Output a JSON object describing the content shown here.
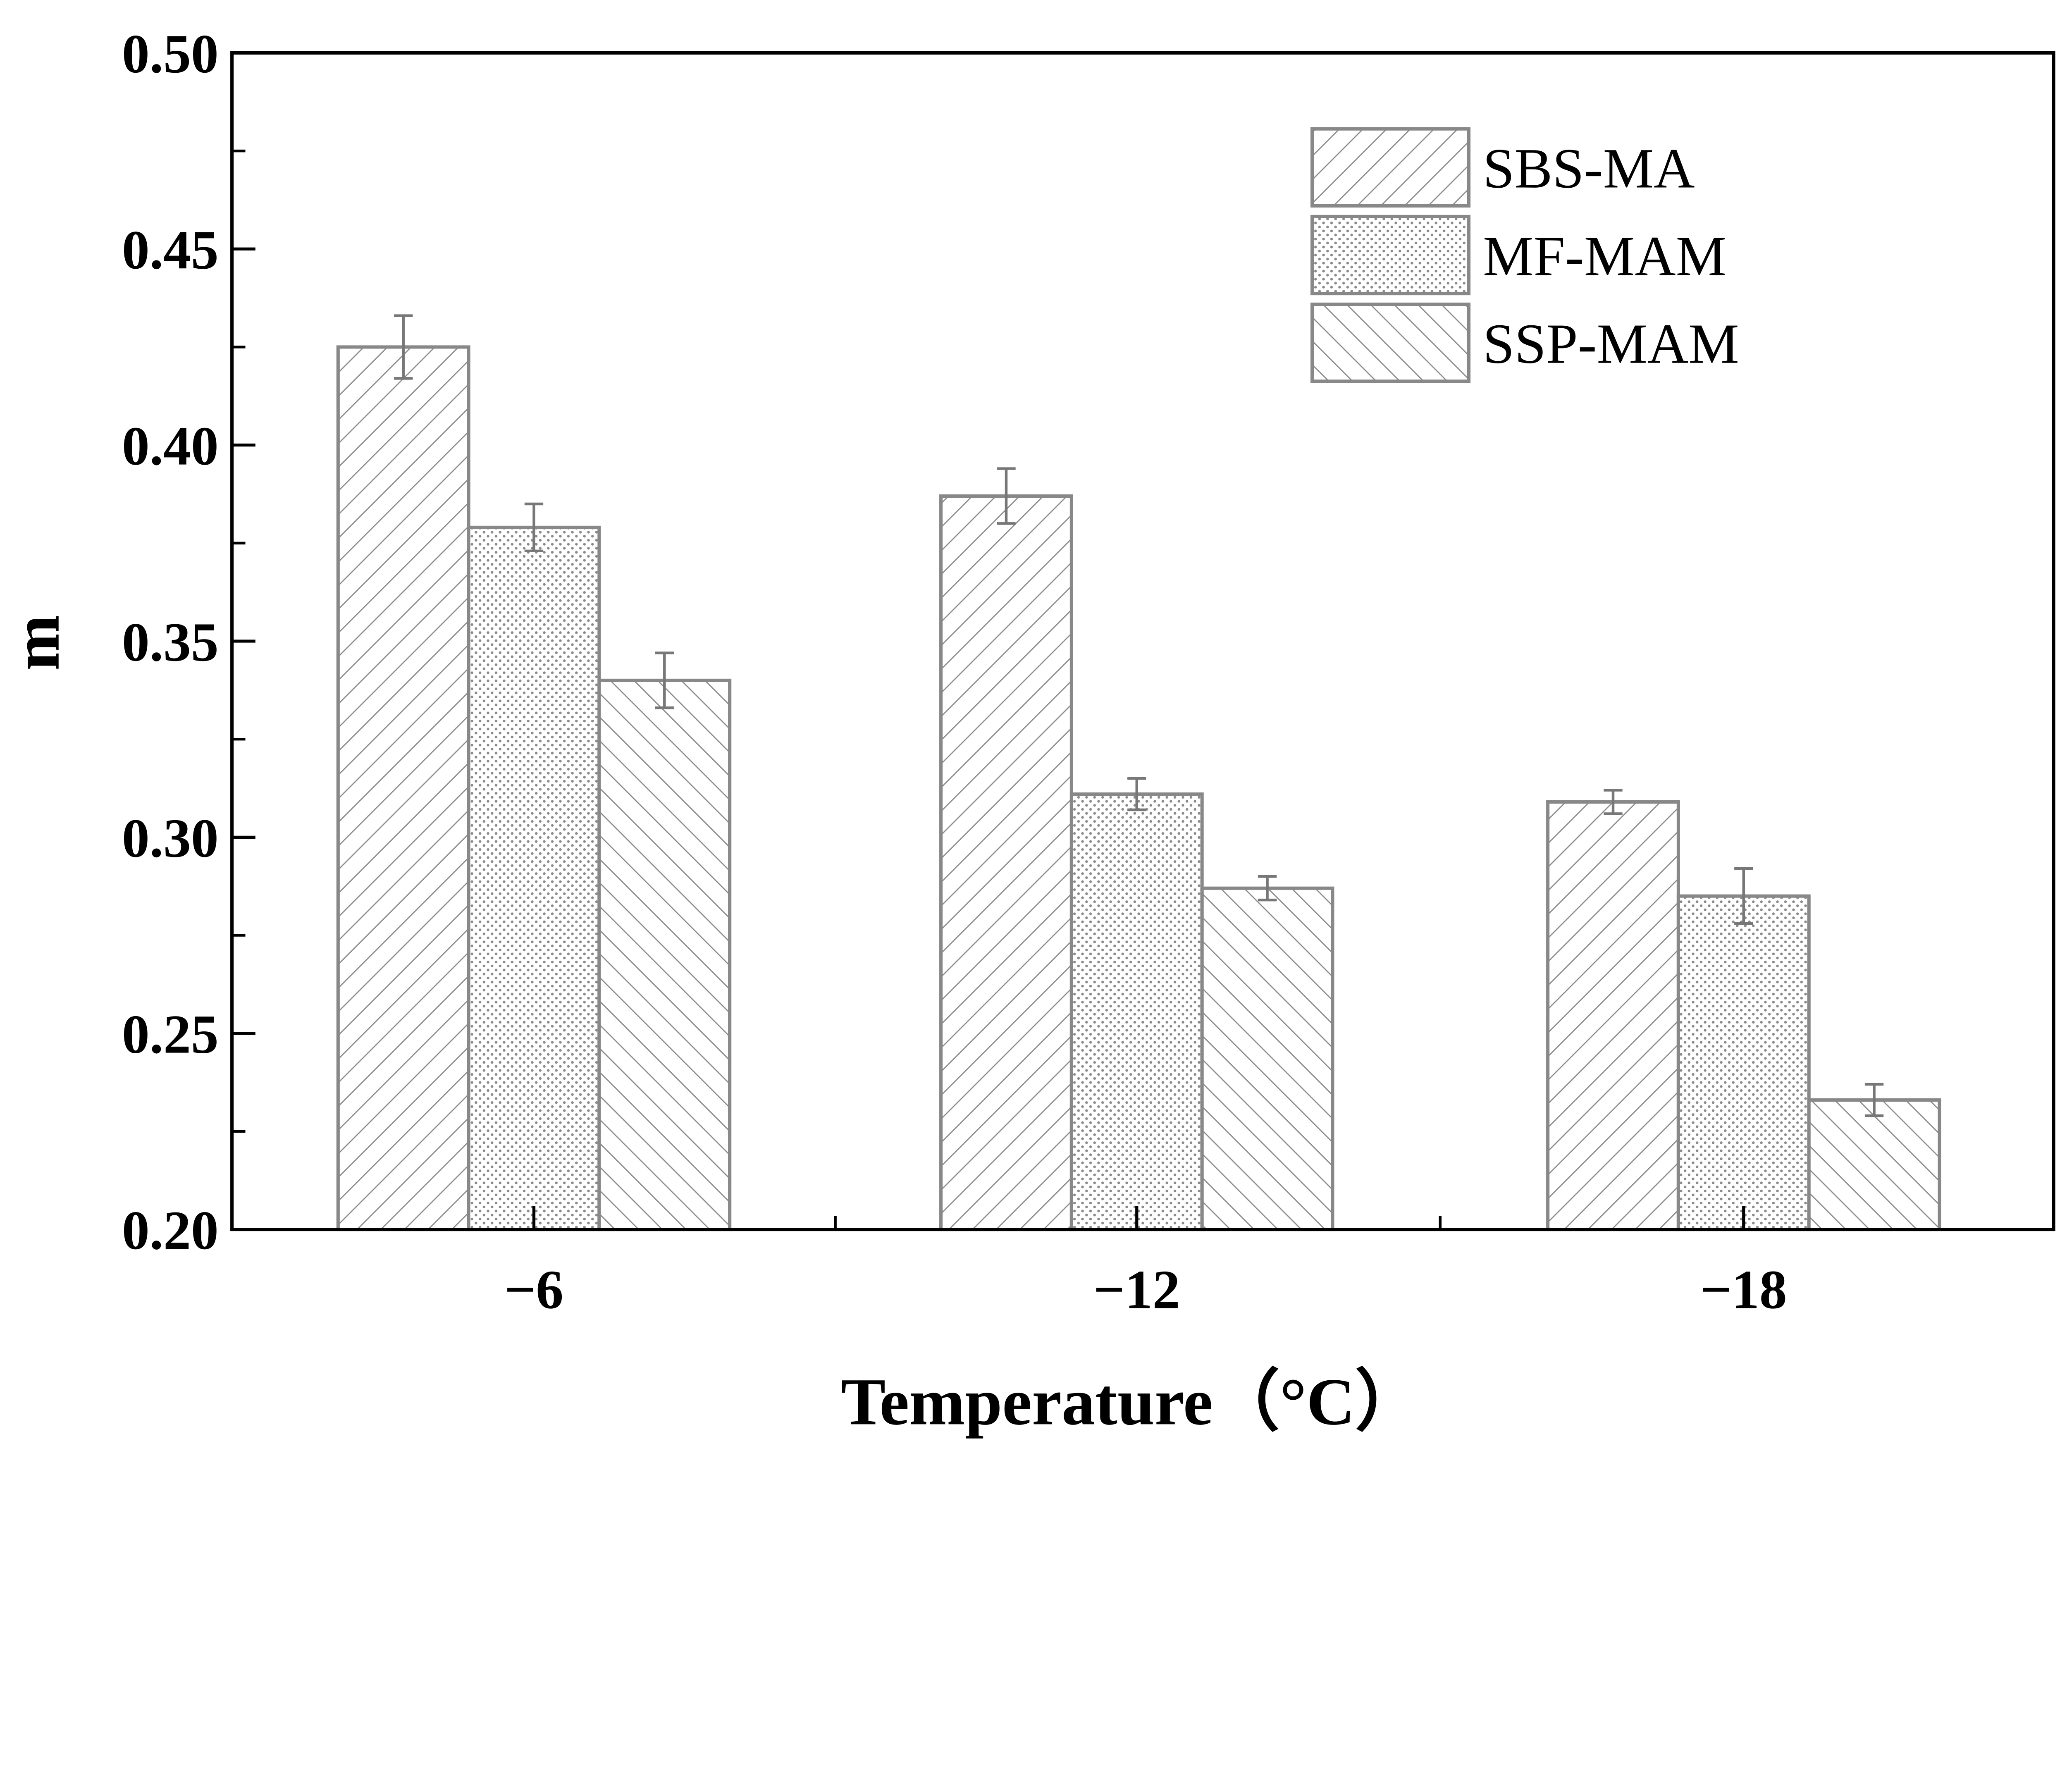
{
  "chart_data": {
    "type": "bar",
    "title": "",
    "xlabel": "Temperature（°C）",
    "ylabel": "m",
    "categories": [
      "−6",
      "−12",
      "−18"
    ],
    "ylim": [
      0.2,
      0.5
    ],
    "yticks": [
      "0.20",
      "0.25",
      "0.30",
      "0.35",
      "0.40",
      "0.45",
      "0.50"
    ],
    "grid": false,
    "legend_position": "top-right",
    "series": [
      {
        "name": "SBS-MA",
        "pattern": "diagonal-forward",
        "values": [
          0.425,
          0.387,
          0.309
        ],
        "errors": [
          0.008,
          0.007,
          0.003
        ]
      },
      {
        "name": "MF-MAM",
        "pattern": "dots",
        "values": [
          0.379,
          0.311,
          0.285
        ],
        "errors": [
          0.006,
          0.004,
          0.007
        ]
      },
      {
        "name": "SSP-MAM",
        "pattern": "diagonal-backward",
        "values": [
          0.34,
          0.287,
          0.233
        ],
        "errors": [
          0.007,
          0.003,
          0.004
        ]
      }
    ],
    "colors": {
      "bar_fill": "#ffffff",
      "bar_stroke": "#888888",
      "hatch": "#8a8a8a",
      "axis": "#000000"
    }
  }
}
